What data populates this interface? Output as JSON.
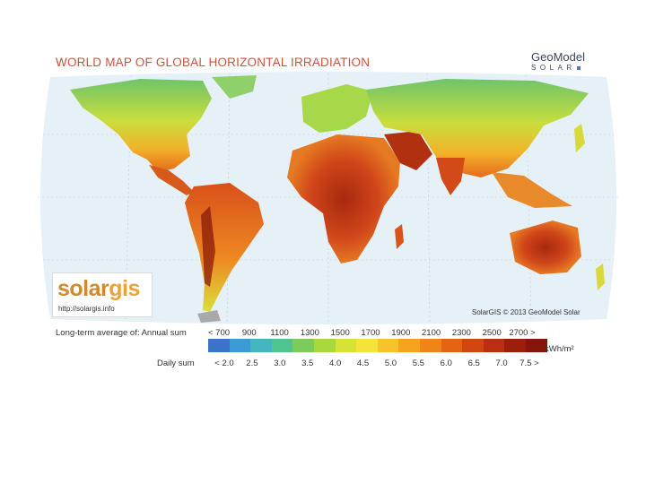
{
  "header": {
    "title": "WORLD MAP OF GLOBAL HORIZONTAL IRRADIATION",
    "brand_top": "GeoModel",
    "brand_bottom": "SOLAR"
  },
  "logo": {
    "brand_text_1": "solar",
    "brand_text_2": "gis",
    "url": "http://solargis.info"
  },
  "map": {
    "credit": "SolarGIS © 2013 GeoModel Solar",
    "ocean_color": "#e6f0f7",
    "land_low_color": "#8ecf5a",
    "land_high_color": "#a8280e"
  },
  "legend": {
    "annual_label": "Long-term average of:  Annual sum",
    "daily_label": "Daily sum",
    "annual_ticks": [
      "< 700",
      "900",
      "1100",
      "1300",
      "1500",
      "1700",
      "1900",
      "2100",
      "2300",
      "2500",
      "2700 >"
    ],
    "daily_ticks": [
      "< 2.0",
      "2.5",
      "3.0",
      "3.5",
      "4.0",
      "4.5",
      "5.0",
      "5.5",
      "6.0",
      "6.5",
      "7.0",
      "7.5 >"
    ],
    "unit": "kWh/m²",
    "colors": [
      "#3a74c9",
      "#3d9ad6",
      "#45b6c0",
      "#52c28f",
      "#7dcc5a",
      "#a9d83e",
      "#d7e238",
      "#f5e23a",
      "#f6c32c",
      "#f4a41f",
      "#ef8518",
      "#e36414",
      "#d04612",
      "#b8300f",
      "#9c1f0c",
      "#86160a"
    ]
  }
}
